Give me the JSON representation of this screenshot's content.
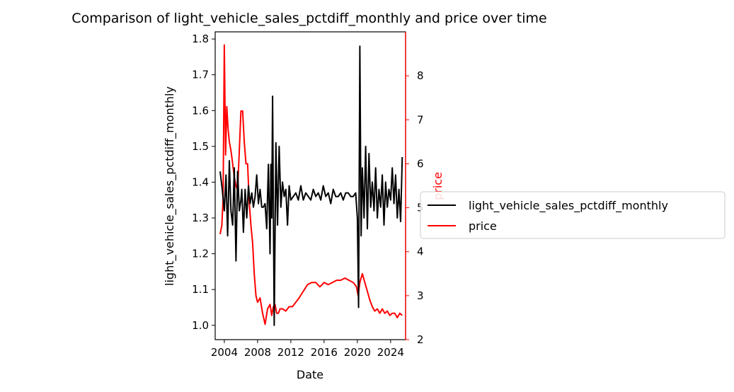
{
  "chart_data": {
    "type": "line",
    "title": "Comparison of light_vehicle_sales_pctdiff_monthly and price over time",
    "xlabel": "Date",
    "ylabel": "light_vehicle_sales_pctdiff_monthly",
    "y2label": "price",
    "xlim": [
      2002.9,
      2025.8
    ],
    "ylim": [
      0.96,
      1.82
    ],
    "y2lim": [
      2.0,
      9.0
    ],
    "xticks": [
      "2004",
      "2008",
      "2012",
      "2016",
      "2020",
      "2024"
    ],
    "yticks": [
      "1.0",
      "1.1",
      "1.2",
      "1.3",
      "1.4",
      "1.5",
      "1.6",
      "1.7",
      "1.8"
    ],
    "y2ticks": [
      "2",
      "3",
      "4",
      "5",
      "6",
      "7",
      "8"
    ],
    "legend_position": "outside-right",
    "grid": false,
    "series": [
      {
        "name": "light_vehicle_sales_pctdiff_monthly",
        "color": "#000000",
        "axis": "left",
        "x": [
          2003.5,
          2003.75,
          2004.0,
          2004.2,
          2004.4,
          2004.6,
          2004.8,
          2005.0,
          2005.2,
          2005.4,
          2005.6,
          2005.8,
          2006.0,
          2006.1,
          2006.3,
          2006.5,
          2006.7,
          2006.9,
          2007.1,
          2007.3,
          2007.5,
          2007.7,
          2007.9,
          2008.1,
          2008.3,
          2008.5,
          2008.7,
          2008.9,
          2009.1,
          2009.3,
          2009.5,
          2009.6,
          2009.7,
          2009.8,
          2010.0,
          2010.2,
          2010.4,
          2010.6,
          2010.8,
          2011.0,
          2011.2,
          2011.4,
          2011.6,
          2011.8,
          2012.0,
          2012.3,
          2012.6,
          2012.9,
          2013.2,
          2013.5,
          2013.8,
          2014.1,
          2014.4,
          2014.7,
          2015.0,
          2015.3,
          2015.6,
          2015.9,
          2016.2,
          2016.5,
          2016.8,
          2017.1,
          2017.4,
          2017.7,
          2018.0,
          2018.3,
          2018.6,
          2018.9,
          2019.2,
          2019.5,
          2019.8,
          2020.0,
          2020.15,
          2020.3,
          2020.45,
          2020.6,
          2020.8,
          2021.0,
          2021.2,
          2021.4,
          2021.6,
          2021.8,
          2022.0,
          2022.2,
          2022.4,
          2022.6,
          2022.8,
          2023.0,
          2023.2,
          2023.4,
          2023.6,
          2023.8,
          2024.0,
          2024.2,
          2024.4,
          2024.6,
          2024.8,
          2025.0,
          2025.2,
          2025.4
        ],
        "values": [
          1.43,
          1.38,
          1.32,
          1.42,
          1.25,
          1.46,
          1.32,
          1.28,
          1.44,
          1.18,
          1.43,
          1.32,
          1.35,
          1.38,
          1.26,
          1.38,
          1.3,
          1.39,
          1.34,
          1.37,
          1.33,
          1.36,
          1.42,
          1.34,
          1.38,
          1.33,
          1.33,
          1.34,
          1.27,
          1.45,
          1.2,
          1.45,
          1.3,
          1.64,
          1.0,
          1.51,
          1.28,
          1.5,
          1.33,
          1.4,
          1.36,
          1.38,
          1.28,
          1.39,
          1.35,
          1.36,
          1.37,
          1.35,
          1.39,
          1.35,
          1.37,
          1.36,
          1.35,
          1.38,
          1.36,
          1.37,
          1.35,
          1.39,
          1.36,
          1.37,
          1.34,
          1.38,
          1.36,
          1.36,
          1.37,
          1.35,
          1.37,
          1.37,
          1.36,
          1.36,
          1.37,
          1.3,
          1.05,
          1.78,
          1.25,
          1.44,
          1.3,
          1.5,
          1.27,
          1.48,
          1.33,
          1.4,
          1.32,
          1.44,
          1.3,
          1.38,
          1.33,
          1.42,
          1.28,
          1.4,
          1.33,
          1.38,
          1.35,
          1.44,
          1.34,
          1.42,
          1.3,
          1.38,
          1.29,
          1.47
        ]
      },
      {
        "name": "price",
        "color": "#ff0000",
        "axis": "right",
        "x": [
          2003.5,
          2003.7,
          2003.85,
          2004.0,
          2004.15,
          2004.3,
          2004.45,
          2004.6,
          2004.8,
          2005.0,
          2005.2,
          2005.4,
          2005.6,
          2005.8,
          2006.0,
          2006.2,
          2006.4,
          2006.6,
          2006.8,
          2007.0,
          2007.2,
          2007.4,
          2007.6,
          2007.8,
          2008.0,
          2008.3,
          2008.6,
          2008.9,
          2009.2,
          2009.5,
          2009.7,
          2009.9,
          2010.1,
          2010.3,
          2010.5,
          2010.7,
          2011.0,
          2011.4,
          2011.8,
          2012.2,
          2012.6,
          2013.0,
          2013.5,
          2014.0,
          2014.5,
          2015.0,
          2015.5,
          2016.0,
          2016.5,
          2017.0,
          2017.5,
          2018.0,
          2018.5,
          2019.0,
          2019.5,
          2019.9,
          2020.1,
          2020.3,
          2020.6,
          2020.9,
          2021.2,
          2021.5,
          2021.8,
          2022.1,
          2022.4,
          2022.7,
          2023.0,
          2023.3,
          2023.6,
          2023.9,
          2024.2,
          2024.5,
          2024.8,
          2025.1,
          2025.4
        ],
        "values": [
          4.4,
          4.6,
          5.2,
          8.7,
          6.2,
          7.3,
          6.8,
          6.5,
          6.3,
          6.0,
          5.7,
          5.5,
          5.4,
          6.3,
          7.2,
          7.2,
          6.5,
          6.0,
          6.0,
          5.1,
          4.6,
          4.2,
          3.5,
          3.0,
          2.85,
          2.95,
          2.6,
          2.35,
          2.7,
          2.8,
          2.55,
          2.75,
          2.8,
          2.6,
          2.6,
          2.7,
          2.7,
          2.65,
          2.75,
          2.75,
          2.85,
          2.95,
          3.1,
          3.25,
          3.3,
          3.3,
          3.2,
          3.3,
          3.25,
          3.3,
          3.35,
          3.35,
          3.4,
          3.35,
          3.3,
          3.2,
          3.0,
          3.3,
          3.5,
          3.3,
          3.1,
          2.9,
          2.75,
          2.65,
          2.7,
          2.6,
          2.7,
          2.6,
          2.65,
          2.55,
          2.6,
          2.6,
          2.5,
          2.6,
          2.55
        ]
      }
    ]
  }
}
